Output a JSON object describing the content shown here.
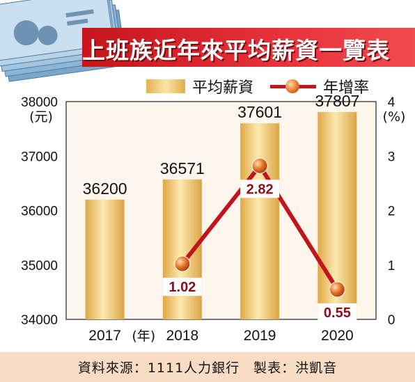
{
  "title": "上班族近年來平均薪資一覽表",
  "legend": {
    "bar_label": "平均薪資",
    "line_label": "年增率"
  },
  "footer": {
    "text": "資料來源：1111人力銀行　製表：洪凱音"
  },
  "chart_data": {
    "type": "bar",
    "categories": [
      "2017",
      "2018",
      "2019",
      "2020"
    ],
    "series": [
      {
        "name": "平均薪資",
        "type": "bar",
        "axis": "left",
        "values": [
          36200,
          36571,
          37601,
          37807
        ],
        "labels": [
          "36200",
          "36571",
          "37601",
          "37807"
        ]
      },
      {
        "name": "年增率",
        "type": "line",
        "axis": "right",
        "values": [
          null,
          1.02,
          2.82,
          0.55
        ],
        "labels": [
          "",
          "1.02",
          "2.82",
          "0.55"
        ]
      }
    ],
    "left_axis": {
      "unit": "(元)",
      "ylim": [
        34000,
        38000
      ],
      "ticks": [
        "34000",
        "35000",
        "36000",
        "37000",
        "38000"
      ]
    },
    "right_axis": {
      "unit": "(%)",
      "ylim": [
        0,
        4
      ],
      "ticks": [
        "0",
        "1",
        "2",
        "3",
        "4"
      ]
    },
    "x_unit": "(年)",
    "colors": {
      "bar_light": "#fbe9ae",
      "bar_dark": "#e0a847",
      "line": "#c0141e",
      "label_text": "#8b0e1a"
    }
  }
}
